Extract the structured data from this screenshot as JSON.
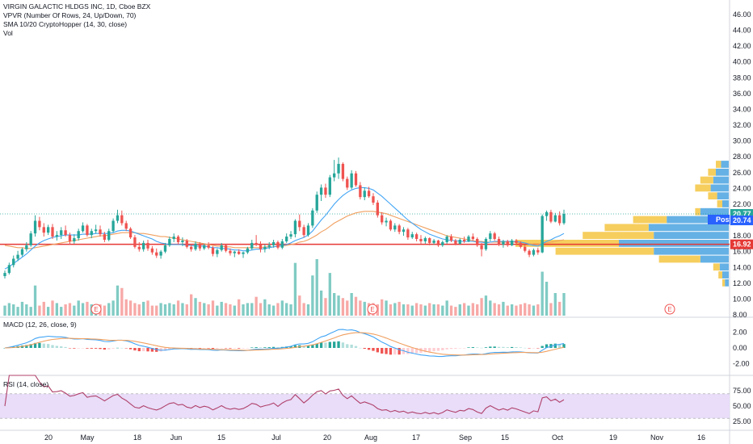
{
  "legend": {
    "title": "VIRGIN GALACTIC HLDGS INC, 1D, Cboe BZX",
    "vpvr": "VPVR (Number Of Rows, 24, Up/Down, 70)",
    "sma": "SMA 10/20 CryptoHopper (14, 30, close)",
    "vol": "Vol",
    "macd": "MACD (12, 26, close, 9)",
    "rsi": "RSI (14, close)"
  },
  "colors": {
    "up": "#26a69a",
    "down": "#ef5350",
    "vol_up": "#80cbc4",
    "vol_down": "#f7a9a7",
    "sma_fast": "#42a5f5",
    "sma_slow": "#f0a060",
    "vpvr_up": "#4aa3e0",
    "vpvr_down": "#f5c542",
    "rsi_line": "#b0406a",
    "rsi_band": "#e9ddf9",
    "macd_line": "#42a5f5",
    "signal_line": "#f0a060"
  },
  "tags": {
    "last": "20.77",
    "post_label": "Post",
    "post": "20.74",
    "hline": "16.92"
  },
  "earnings_marker": "E",
  "chart_data": [
    {
      "type": "candlestick",
      "name": "price",
      "y_ticks": [
        "8.00",
        "10.00",
        "12.00",
        "14.00",
        "16.00",
        "18.00",
        "20.00",
        "22.00",
        "24.00",
        "26.00",
        "28.00",
        "30.00",
        "32.00",
        "34.00",
        "36.00",
        "38.00",
        "40.00",
        "42.00",
        "44.00",
        "46.00"
      ],
      "ylim": [
        7,
        47
      ],
      "x_ticks": [
        "20",
        "May",
        "18",
        "Jun",
        "15",
        "Jul",
        "20",
        "Aug",
        "17",
        "Sep",
        "15",
        "Oct",
        "19",
        "Nov",
        "16"
      ],
      "candles": [
        [
          12.9,
          13.6,
          12.6,
          13.3
        ],
        [
          13.3,
          14.6,
          13.1,
          14.3
        ],
        [
          14.3,
          15.5,
          14.0,
          15.1
        ],
        [
          15.1,
          16.1,
          14.8,
          15.6
        ],
        [
          15.6,
          16.5,
          15.4,
          16.3
        ],
        [
          16.3,
          17.2,
          16.0,
          16.8
        ],
        [
          16.8,
          18.6,
          16.6,
          18.3
        ],
        [
          18.3,
          20.6,
          17.9,
          19.9
        ],
        [
          19.9,
          20.4,
          18.7,
          19.1
        ],
        [
          19.1,
          19.6,
          17.9,
          18.4
        ],
        [
          18.4,
          19.4,
          18.1,
          19.1
        ],
        [
          19.1,
          19.5,
          17.6,
          17.9
        ],
        [
          17.9,
          18.6,
          17.4,
          18.1
        ],
        [
          18.1,
          19.1,
          17.6,
          18.7
        ],
        [
          18.7,
          19.3,
          17.9,
          18.1
        ],
        [
          18.1,
          18.4,
          16.9,
          17.3
        ],
        [
          17.3,
          18.2,
          17.0,
          17.7
        ],
        [
          17.7,
          18.9,
          17.4,
          18.6
        ],
        [
          18.6,
          19.7,
          18.4,
          19.3
        ],
        [
          19.3,
          19.5,
          17.9,
          18.1
        ],
        [
          18.1,
          18.9,
          17.7,
          18.6
        ],
        [
          18.6,
          19.4,
          18.3,
          18.8
        ],
        [
          18.8,
          19.3,
          17.9,
          18.2
        ],
        [
          18.2,
          18.5,
          17.2,
          17.5
        ],
        [
          17.5,
          18.9,
          17.3,
          18.6
        ],
        [
          18.6,
          20.2,
          18.4,
          19.9
        ],
        [
          19.9,
          21.3,
          19.6,
          20.6
        ],
        [
          20.6,
          21.2,
          19.3,
          19.6
        ],
        [
          19.6,
          19.9,
          18.6,
          18.9
        ],
        [
          18.9,
          19.1,
          17.6,
          17.8
        ],
        [
          17.8,
          18.1,
          16.4,
          16.6
        ],
        [
          16.6,
          17.2,
          16.0,
          16.3
        ],
        [
          16.3,
          17.4,
          16.0,
          17.1
        ],
        [
          17.1,
          17.5,
          16.1,
          16.4
        ],
        [
          16.4,
          16.7,
          15.6,
          15.9
        ],
        [
          15.9,
          16.4,
          15.2,
          15.5
        ],
        [
          15.5,
          16.2,
          15.1,
          16.0
        ],
        [
          16.0,
          17.1,
          15.8,
          16.8
        ],
        [
          16.8,
          17.9,
          16.6,
          17.6
        ],
        [
          17.6,
          18.3,
          17.2,
          17.9
        ],
        [
          17.9,
          18.1,
          16.9,
          17.2
        ],
        [
          17.2,
          17.8,
          16.7,
          17.4
        ],
        [
          17.4,
          17.6,
          16.4,
          16.6
        ],
        [
          16.6,
          17.0,
          16.0,
          16.3
        ],
        [
          16.3,
          17.3,
          16.1,
          17.0
        ],
        [
          17.0,
          17.2,
          16.1,
          16.4
        ],
        [
          16.4,
          17.0,
          16.2,
          16.8
        ],
        [
          16.8,
          17.2,
          16.3,
          16.5
        ],
        [
          16.5,
          16.7,
          15.4,
          15.7
        ],
        [
          15.7,
          16.4,
          15.3,
          16.2
        ],
        [
          16.2,
          17.1,
          16.0,
          16.8
        ],
        [
          16.8,
          16.9,
          15.9,
          16.1
        ],
        [
          16.1,
          16.4,
          15.5,
          15.8
        ],
        [
          15.8,
          16.1,
          15.3,
          16.0
        ],
        [
          16.0,
          16.3,
          15.6,
          15.7
        ],
        [
          15.7,
          16.0,
          15.2,
          15.9
        ],
        [
          15.9,
          16.6,
          15.7,
          16.4
        ],
        [
          16.4,
          17.5,
          16.2,
          17.1
        ],
        [
          17.1,
          18.1,
          16.7,
          16.9
        ],
        [
          16.9,
          17.3,
          15.9,
          16.3
        ],
        [
          16.3,
          16.9,
          15.9,
          16.6
        ],
        [
          16.6,
          17.2,
          16.3,
          16.8
        ],
        [
          16.8,
          17.5,
          16.5,
          17.2
        ],
        [
          17.2,
          17.4,
          16.3,
          16.5
        ],
        [
          16.5,
          17.6,
          16.3,
          17.3
        ],
        [
          17.3,
          18.3,
          17.1,
          17.9
        ],
        [
          17.9,
          18.6,
          17.6,
          18.2
        ],
        [
          18.2,
          20.1,
          17.8,
          19.9
        ],
        [
          19.9,
          20.7,
          18.6,
          19.1
        ],
        [
          19.1,
          19.4,
          17.8,
          18.1
        ],
        [
          18.1,
          19.6,
          17.9,
          19.3
        ],
        [
          19.3,
          21.5,
          19.0,
          21.2
        ],
        [
          21.2,
          23.6,
          20.9,
          23.2
        ],
        [
          23.2,
          24.5,
          22.4,
          24.1
        ],
        [
          24.1,
          24.6,
          22.8,
          23.2
        ],
        [
          23.2,
          25.7,
          22.9,
          25.4
        ],
        [
          25.4,
          27.6,
          24.9,
          25.9
        ],
        [
          25.9,
          27.9,
          25.2,
          27.1
        ],
        [
          27.1,
          27.3,
          24.9,
          25.2
        ],
        [
          25.2,
          25.5,
          23.8,
          24.1
        ],
        [
          24.1,
          26.3,
          23.9,
          25.9
        ],
        [
          25.9,
          26.2,
          24.2,
          24.4
        ],
        [
          24.4,
          24.8,
          22.6,
          22.9
        ],
        [
          22.9,
          24.1,
          22.5,
          23.7
        ],
        [
          23.7,
          24.2,
          22.8,
          23.0
        ],
        [
          23.0,
          23.4,
          21.9,
          22.2
        ],
        [
          22.2,
          22.5,
          20.3,
          20.6
        ],
        [
          20.6,
          21.0,
          19.4,
          19.7
        ],
        [
          19.7,
          20.3,
          19.2,
          19.9
        ],
        [
          19.9,
          20.1,
          18.6,
          18.8
        ],
        [
          18.8,
          19.6,
          18.5,
          19.3
        ],
        [
          19.3,
          19.5,
          18.2,
          18.5
        ],
        [
          18.5,
          19.1,
          18.0,
          18.8
        ],
        [
          18.8,
          19.0,
          17.5,
          17.8
        ],
        [
          17.8,
          18.5,
          17.6,
          18.2
        ],
        [
          18.2,
          18.4,
          17.3,
          17.6
        ],
        [
          17.6,
          18.1,
          17.0,
          17.3
        ],
        [
          17.3,
          17.9,
          17.0,
          17.7
        ],
        [
          17.7,
          17.8,
          16.8,
          17.1
        ],
        [
          17.1,
          17.6,
          16.9,
          17.4
        ],
        [
          17.4,
          17.5,
          16.6,
          16.8
        ],
        [
          16.8,
          17.4,
          16.6,
          17.2
        ],
        [
          17.2,
          18.1,
          17.0,
          17.9
        ],
        [
          17.9,
          18.2,
          17.2,
          17.4
        ],
        [
          17.4,
          17.6,
          16.8,
          17.0
        ],
        [
          17.0,
          17.7,
          16.9,
          17.5
        ],
        [
          17.5,
          17.9,
          17.1,
          17.3
        ],
        [
          17.3,
          18.1,
          17.2,
          17.9
        ],
        [
          17.9,
          18.3,
          17.4,
          17.6
        ],
        [
          17.6,
          17.8,
          16.6,
          16.8
        ],
        [
          16.8,
          17.1,
          15.4,
          16.3
        ],
        [
          16.3,
          17.8,
          16.1,
          17.6
        ],
        [
          17.6,
          18.6,
          17.3,
          18.3
        ],
        [
          18.3,
          18.5,
          17.4,
          17.6
        ],
        [
          17.6,
          17.9,
          16.7,
          16.9
        ],
        [
          16.9,
          17.5,
          16.5,
          17.3
        ],
        [
          17.3,
          17.5,
          16.6,
          16.8
        ],
        [
          16.8,
          17.6,
          16.7,
          17.4
        ],
        [
          17.4,
          17.6,
          16.9,
          17.1
        ],
        [
          17.1,
          17.3,
          16.4,
          16.6
        ],
        [
          16.6,
          16.9,
          15.9,
          16.1
        ],
        [
          16.1,
          16.3,
          15.3,
          15.6
        ],
        [
          15.6,
          16.4,
          15.4,
          16.2
        ],
        [
          16.2,
          16.5,
          15.6,
          15.9
        ],
        [
          15.9,
          20.7,
          15.8,
          20.5
        ],
        [
          20.5,
          21.2,
          19.9,
          21.0
        ],
        [
          21.0,
          21.3,
          19.6,
          19.8
        ],
        [
          19.8,
          20.9,
          19.7,
          20.6
        ],
        [
          20.6,
          21.1,
          19.3,
          19.6
        ],
        [
          19.6,
          21.3,
          19.4,
          20.77
        ]
      ],
      "sma_fast": [
        13.8,
        14.1,
        14.5,
        14.9,
        15.3,
        15.7,
        16.2,
        16.7,
        17.1,
        17.4,
        17.6,
        17.8,
        17.9,
        18.0,
        18.1,
        18.1,
        18.1,
        18.1,
        18.2,
        18.2,
        18.2,
        18.3,
        18.3,
        18.3,
        18.3,
        18.4,
        18.6,
        18.7,
        18.7,
        18.6,
        18.4,
        18.2,
        18.0,
        17.8,
        17.6,
        17.3,
        17.1,
        17.0,
        16.9,
        16.9,
        16.9,
        16.9,
        16.8,
        16.8,
        16.7,
        16.7,
        16.7,
        16.6,
        16.5,
        16.5,
        16.4,
        16.4,
        16.3,
        16.2,
        16.2,
        16.1,
        16.1,
        16.2,
        16.3,
        16.3,
        16.4,
        16.5,
        16.6,
        16.7,
        16.8,
        16.9,
        17.1,
        17.4,
        17.6,
        17.8,
        18.1,
        18.6,
        19.3,
        20.0,
        20.6,
        21.3,
        22.0,
        22.6,
        23.1,
        23.5,
        23.8,
        24.0,
        24.1,
        24.1,
        24.0,
        23.8,
        23.4,
        23.0,
        22.5,
        22.0,
        21.5,
        21.0,
        20.5,
        20.0,
        19.6,
        19.2,
        18.8,
        18.5,
        18.2,
        18.0,
        17.8,
        17.6,
        17.5,
        17.4,
        17.4,
        17.3,
        17.3,
        17.3,
        17.3,
        17.2,
        17.2,
        17.1,
        17.2,
        17.3,
        17.3,
        17.3,
        17.3,
        17.3,
        17.3,
        17.2,
        17.1,
        16.9,
        16.8,
        16.7,
        17.0,
        17.3,
        17.5,
        17.8,
        18.0,
        18.3
      ],
      "sma_slow": [
        16.8,
        16.7,
        16.6,
        16.5,
        16.5,
        16.4,
        16.4,
        16.5,
        16.6,
        16.7,
        16.8,
        16.9,
        17.0,
        17.1,
        17.2,
        17.3,
        17.4,
        17.5,
        17.6,
        17.7,
        17.8,
        17.9,
        18.0,
        18.0,
        18.1,
        18.2,
        18.3,
        18.4,
        18.4,
        18.4,
        18.4,
        18.3,
        18.3,
        18.2,
        18.1,
        18.0,
        17.9,
        17.9,
        17.8,
        17.7,
        17.6,
        17.5,
        17.4,
        17.3,
        17.2,
        17.1,
        17.0,
        16.9,
        16.8,
        16.7,
        16.7,
        16.6,
        16.6,
        16.5,
        16.5,
        16.5,
        16.5,
        16.5,
        16.5,
        16.5,
        16.6,
        16.6,
        16.6,
        16.7,
        16.7,
        16.8,
        16.9,
        17.0,
        17.2,
        17.3,
        17.5,
        17.8,
        18.1,
        18.5,
        18.8,
        19.2,
        19.6,
        19.9,
        20.2,
        20.5,
        20.7,
        20.9,
        21.0,
        21.1,
        21.1,
        21.1,
        21.0,
        20.9,
        20.8,
        20.6,
        20.4,
        20.2,
        20.0,
        19.8,
        19.6,
        19.4,
        19.2,
        19.0,
        18.8,
        18.6,
        18.4,
        18.2,
        18.0,
        17.9,
        17.8,
        17.7,
        17.6,
        17.5,
        17.4,
        17.3,
        17.3,
        17.2,
        17.2,
        17.2,
        17.2,
        17.2,
        17.2,
        17.2,
        17.2,
        17.1,
        17.1,
        17.0,
        16.9,
        16.9,
        17.0,
        17.1,
        17.2,
        17.3,
        17.4,
        17.5
      ],
      "volume": [
        8,
        10,
        9,
        7,
        11,
        9,
        7,
        24,
        8,
        11,
        7,
        12,
        10,
        7,
        9,
        10,
        8,
        12,
        10,
        11,
        9,
        7,
        9,
        8,
        10,
        12,
        24,
        22,
        13,
        12,
        10,
        9,
        11,
        12,
        8,
        8,
        10,
        9,
        10,
        9,
        12,
        10,
        9,
        17,
        14,
        11,
        10,
        9,
        12,
        8,
        11,
        10,
        9,
        8,
        13,
        9,
        10,
        10,
        15,
        10,
        13,
        9,
        8,
        10,
        12,
        10,
        9,
        42,
        16,
        10,
        9,
        32,
        45,
        20,
        14,
        34,
        18,
        16,
        14,
        12,
        18,
        15,
        12,
        11,
        10,
        10,
        9,
        13,
        12,
        9,
        10,
        11,
        9,
        9,
        8,
        10,
        9,
        8,
        10,
        9,
        9,
        8,
        12,
        8,
        7,
        9,
        10,
        8,
        10,
        9,
        14,
        16,
        12,
        10,
        9,
        11,
        8,
        9,
        8,
        9,
        10,
        9,
        8,
        9,
        35,
        27,
        10,
        18,
        11,
        18
      ]
    },
    {
      "type": "macd",
      "name": "macd",
      "y_ticks": [
        "2.00",
        "0.00",
        "-2.00"
      ],
      "ylim": [
        -3.5,
        3.5
      ]
    },
    {
      "type": "rsi",
      "name": "rsi",
      "y_ticks": [
        "75.00",
        "50.00",
        "25.00"
      ],
      "ylim": [
        15,
        85
      ],
      "band": [
        30,
        70
      ]
    },
    {
      "type": "volume_profile",
      "name": "vpvr",
      "rows": [
        {
          "price": 27.0,
          "up": 6,
          "down": 4
        },
        {
          "price": 26.0,
          "up": 10,
          "down": 6
        },
        {
          "price": 25.0,
          "up": 12,
          "down": 10
        },
        {
          "price": 24.0,
          "up": 14,
          "down": 12
        },
        {
          "price": 23.0,
          "up": 9,
          "down": 7
        },
        {
          "price": 22.0,
          "up": 5,
          "down": 4
        },
        {
          "price": 21.0,
          "up": 22,
          "down": 4
        },
        {
          "price": 20.0,
          "up": 48,
          "down": 26
        },
        {
          "price": 19.0,
          "up": 62,
          "down": 34
        },
        {
          "price": 18.0,
          "up": 58,
          "down": 55
        },
        {
          "price": 17.0,
          "up": 85,
          "down": 80
        },
        {
          "price": 16.0,
          "up": 58,
          "down": 76
        },
        {
          "price": 15.0,
          "up": 22,
          "down": 32
        },
        {
          "price": 14.0,
          "up": 7,
          "down": 5
        },
        {
          "price": 13.0,
          "up": 5,
          "down": 3
        },
        {
          "price": 12.0,
          "up": 3,
          "down": 2
        }
      ]
    }
  ]
}
